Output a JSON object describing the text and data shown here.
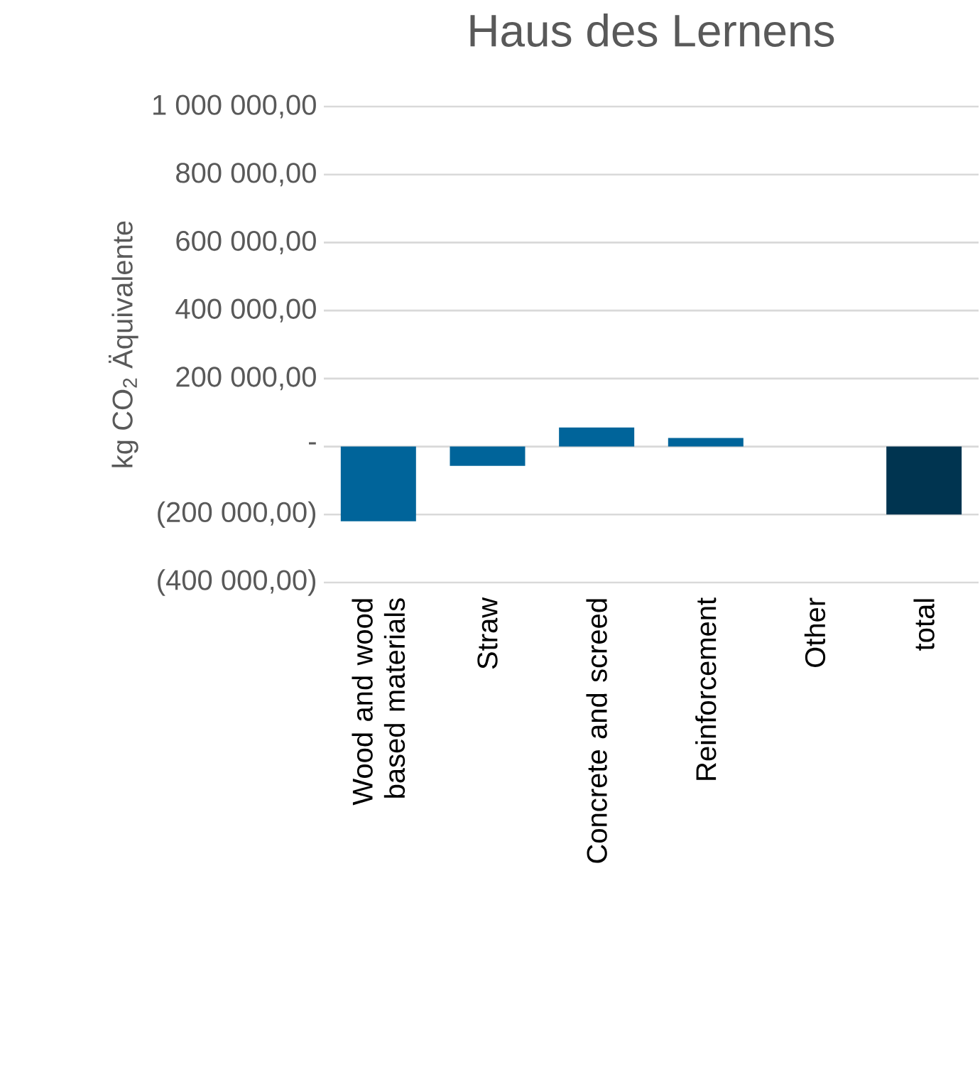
{
  "chart_data": {
    "type": "bar",
    "title": "Haus des Lernens",
    "ylabel": "kg CO$_{2}$ Äquivalente",
    "categories": [
      "Wood and wood based materials",
      "Straw",
      "Concrete and screed",
      "Reinforcement",
      "Other",
      "total"
    ],
    "values": [
      -220000,
      -57000,
      56000,
      25000,
      0,
      -200000
    ],
    "colors": [
      "#00649a",
      "#00649a",
      "#00649a",
      "#00649a",
      "#00649a",
      "#003450"
    ],
    "ylim": [
      -400000,
      1000000
    ],
    "yticks": [
      {
        "value": 1000000,
        "label": "1 000 000,00"
      },
      {
        "value": 800000,
        "label": "800 000,00"
      },
      {
        "value": 600000,
        "label": "600 000,00"
      },
      {
        "value": 400000,
        "label": "400 000,00"
      },
      {
        "value": 200000,
        "label": "200 000,00"
      },
      {
        "value": 0,
        "label": "-"
      },
      {
        "value": -200000,
        "label": "(200 000,00)"
      },
      {
        "value": -400000,
        "label": "(400 000,00)"
      }
    ],
    "grid": "y"
  }
}
